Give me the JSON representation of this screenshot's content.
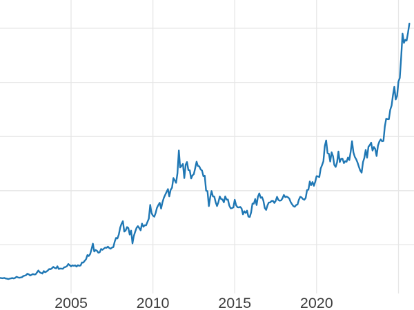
{
  "chart": {
    "background_color": "#ffffff",
    "grid_color": "#e6e6e6",
    "line_color": "#1f77b4",
    "tick_label_color": "#3d3d3d"
  },
  "chart_data": {
    "type": "line",
    "title": "",
    "xlabel": "",
    "ylabel": "",
    "legend_position": "none",
    "grid": true,
    "x_ticks": [
      {
        "year": 2005,
        "label": "2005"
      },
      {
        "year": 2010,
        "label": "2010"
      },
      {
        "year": 2015,
        "label": "2015"
      },
      {
        "year": 2020,
        "label": "2020"
      },
      {
        "year": 2025,
        "label": ""
      }
    ],
    "y_gridline_values": [
      700,
      1400,
      2100,
      2800,
      3500
    ],
    "view_xlim": [
      2000.658,
      2025.95
    ],
    "view_ylim": [
      -143,
      3865
    ],
    "series": [
      {
        "name": "price",
        "color": "#1f77b4",
        "start_year": 2000.583,
        "step_years": 0.0833333,
        "values": [
          277,
          272,
          269,
          268,
          272,
          265,
          261,
          257,
          262,
          266,
          270,
          265,
          272,
          286,
          279,
          274,
          277,
          281,
          296,
          301,
          308,
          326,
          318,
          303,
          312,
          322,
          316,
          318,
          342,
          367,
          346,
          335,
          328,
          360,
          345,
          354,
          369,
          387,
          384,
          397,
          415,
          401,
          395,
          423,
          387,
          393,
          392,
          390,
          409,
          414,
          424,
          452,
          437,
          421,
          434,
          428,
          434,
          418,
          436,
          428,
          432,
          472,
          470,
          494,
          513,
          568,
          555,
          581,
          644,
          715,
          613,
          633,
          622,
          598,
          603,
          646,
          635,
          650,
          664,
          661,
          676,
          658,
          650,
          664,
          671,
          742,
          789,
          782,
          833,
          922,
          971,
          1005,
          871,
          885,
          929,
          917,
          832,
          884,
          718,
          813,
          869,
          919,
          941,
          916,
          887,
          974,
          933,
          953,
          952,
          995,
          1039,
          1215,
          1110,
          1077,
          1063,
          1112,
          1179,
          1214,
          1243,
          1168,
          1247,
          1306,
          1345,
          1384,
          1420,
          1326,
          1410,
          1438,
          1563,
          1535,
          1501,
          1627,
          1920,
          1700,
          1721,
          1745,
          1563,
          1736,
          1770,
          1667,
          1663,
          1557,
          1597,
          1613,
          1691,
          1775,
          1719,
          1714,
          1675,
          1660,
          1587,
          1593,
          1400,
          1393,
          1200,
          1312,
          1394,
          1326,
          1323,
          1252,
          1201,
          1250,
          1325,
          1290,
          1287,
          1249,
          1326,
          1284,
          1286,
          1207,
          1172,
          1174,
          1183,
          1282,
          1212,
          1186,
          1183,
          1190,
          1171,
          1094,
          1134,
          1113,
          1141,
          1064,
          1060,
          1117,
          1233,
          1231,
          1292,
          1214,
          1321,
          1365,
          1308,
          1315,
          1271,
          1177,
          1151,
          1211,
          1247,
          1248,
          1267,
          1268,
          1241,
          1266,
          1320,
          1279,
          1270,
          1274,
          1302,
          1344,
          1317,
          1324,
          1314,
          1297,
          1252,
          1223,
          1200,
          1191,
          1214,
          1221,
          1281,
          1320,
          1312,
          1291,
          1282,
          1305,
          1408,
          1413,
          1519,
          1471,
          1512,
          1463,
          1516,
          1588,
          1585,
          1576,
          1686,
          1729,
          1780,
          1975,
          2050,
          1885,
          1878,
          1776,
          1897,
          1847,
          1733,
          1707,
          1767,
          1906,
          1769,
          1813,
          1814,
          1756,
          1782,
          1774,
          1828,
          1796,
          1908,
          2040,
          1896,
          1837,
          1806,
          1765,
          1710,
          1660,
          1633,
          1768,
          1823,
          1927,
          1826,
          1968,
          1989,
          2020,
          1918,
          1964,
          1939,
          1848,
          1983,
          2035,
          2062,
          2039,
          2043,
          2229,
          2330,
          2326,
          2325,
          2447,
          2502,
          2634,
          2743,
          2580,
          2624,
          2811,
          2857,
          3123,
          3430,
          3310,
          3350,
          3340,
          3440,
          3560
        ]
      }
    ]
  }
}
